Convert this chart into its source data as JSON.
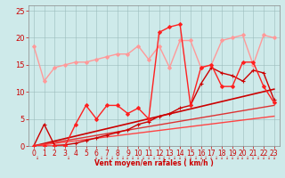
{
  "xlabel": "Vent moyen/en rafales ( km/h )",
  "xlim": [
    -0.5,
    23.5
  ],
  "ylim": [
    0,
    26
  ],
  "yticks": [
    0,
    5,
    10,
    15,
    20,
    25
  ],
  "xticks": [
    0,
    1,
    2,
    3,
    4,
    5,
    6,
    7,
    8,
    9,
    10,
    11,
    12,
    13,
    14,
    15,
    16,
    17,
    18,
    19,
    20,
    21,
    22,
    23
  ],
  "bg_color": "#ceeaea",
  "grid_color": "#9bbcbc",
  "series": [
    {
      "note": "light pink - high flat line, starts ~18, gradual rise",
      "x": [
        0,
        1,
        2,
        3,
        4,
        5,
        6,
        7,
        8,
        9,
        10,
        11,
        12,
        13,
        14,
        15,
        16,
        17,
        18,
        19,
        20,
        21,
        22,
        23
      ],
      "y": [
        18.5,
        12.0,
        14.5,
        15.0,
        15.5,
        15.5,
        16.0,
        16.5,
        17.0,
        17.0,
        18.5,
        16.0,
        18.5,
        14.5,
        19.5,
        19.5,
        14.5,
        15.0,
        19.5,
        20.0,
        20.5,
        15.0,
        20.5,
        20.0
      ],
      "color": "#ff9999",
      "linewidth": 1.0,
      "marker": "D",
      "markersize": 2.0,
      "zorder": 2,
      "linestyle": "-"
    },
    {
      "note": "bright red spiky - main peaks around 12-14, 16-17",
      "x": [
        0,
        1,
        2,
        3,
        4,
        5,
        6,
        7,
        8,
        9,
        10,
        11,
        12,
        13,
        14,
        15,
        16,
        17,
        18,
        19,
        20,
        21,
        22,
        23
      ],
      "y": [
        0.0,
        0.0,
        0.0,
        0.0,
        4.0,
        7.5,
        5.0,
        7.5,
        7.5,
        6.0,
        7.0,
        5.0,
        21.0,
        22.0,
        22.5,
        7.5,
        14.5,
        15.0,
        11.0,
        11.0,
        15.5,
        15.5,
        11.0,
        8.0
      ],
      "color": "#ff2020",
      "linewidth": 1.0,
      "marker": "D",
      "markersize": 2.0,
      "zorder": 4,
      "linestyle": "-"
    },
    {
      "note": "medium red - rising trend with spikes",
      "x": [
        0,
        1,
        2,
        3,
        4,
        5,
        6,
        7,
        8,
        9,
        10,
        11,
        12,
        13,
        14,
        15,
        16,
        17,
        18,
        19,
        20,
        21,
        22,
        23
      ],
      "y": [
        0.0,
        4.0,
        0.1,
        0.2,
        0.5,
        1.0,
        1.5,
        2.0,
        2.5,
        3.0,
        4.0,
        4.5,
        5.5,
        6.0,
        7.0,
        7.5,
        11.5,
        14.5,
        13.5,
        13.0,
        12.0,
        14.0,
        13.5,
        8.5
      ],
      "color": "#cc0000",
      "linewidth": 1.0,
      "marker": "+",
      "markersize": 3.5,
      "zorder": 3,
      "linestyle": "-"
    },
    {
      "note": "diagonal line 1 - linear trend low",
      "x": [
        0,
        23
      ],
      "y": [
        0.0,
        10.5
      ],
      "color": "#cc0000",
      "linewidth": 1.2,
      "marker": null,
      "markersize": 0,
      "zorder": 2,
      "linestyle": "-"
    },
    {
      "note": "diagonal line 2 - slightly higher",
      "x": [
        0,
        23
      ],
      "y": [
        0.0,
        7.5
      ],
      "color": "#dd3333",
      "linewidth": 1.0,
      "marker": null,
      "markersize": 0,
      "zorder": 2,
      "linestyle": "-"
    },
    {
      "note": "diagonal line 3 - lowest",
      "x": [
        0,
        23
      ],
      "y": [
        0.0,
        5.5
      ],
      "color": "#ff4444",
      "linewidth": 1.0,
      "marker": null,
      "markersize": 0,
      "zorder": 2,
      "linestyle": "-"
    }
  ],
  "arrows": {
    "positions": [
      0.35,
      3.35,
      6.0,
      6.5,
      7.0,
      7.5,
      8.0,
      8.5,
      9.0,
      9.5,
      10.0,
      10.5,
      11.0,
      11.5,
      12.0,
      12.5,
      13.0,
      13.5,
      14.0,
      14.5,
      15.0,
      15.5,
      16.0,
      16.5,
      17.0,
      17.5,
      18.0,
      18.5,
      19.0,
      19.5,
      20.0,
      20.5,
      21.0,
      21.5,
      22.0,
      22.5,
      23.0
    ],
    "color": "#cc0000"
  }
}
